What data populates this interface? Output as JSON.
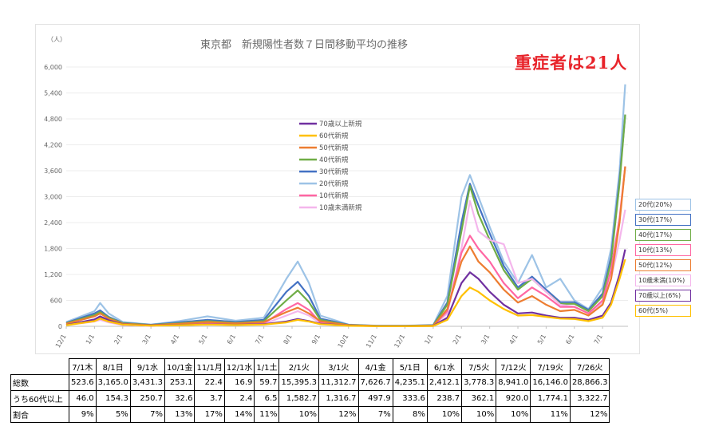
{
  "chart_data": {
    "type": "line",
    "title": "東京都　新規陽性者数７日間移動平均の推移",
    "y_unit_label": "（人）",
    "ylim": [
      0,
      6000
    ],
    "yticks": [
      "0",
      "600",
      "1,200",
      "1,800",
      "2,400",
      "3,000",
      "3,600",
      "4,200",
      "4,800",
      "5,400",
      "6,000"
    ],
    "x_range": [
      0,
      19.9
    ],
    "x_ticks": [
      "12/1",
      "1/1",
      "2/1",
      "3/1",
      "4/1",
      "5/1",
      "6/1",
      "7/1",
      "8/1",
      "9/1",
      "10/1",
      "11/1",
      "12/1",
      "1/1",
      "2/1",
      "3/1",
      "4/1",
      "5/1",
      "6/1",
      "7/1"
    ],
    "legend_placement": "center-left",
    "series": [
      {
        "name": "70歳以上新規",
        "color": "#7030a0",
        "values": [
          [
            0,
            30
          ],
          [
            1,
            160
          ],
          [
            1.2,
            230
          ],
          [
            1.5,
            140
          ],
          [
            2,
            45
          ],
          [
            3,
            18
          ],
          [
            4,
            30
          ],
          [
            5,
            45
          ],
          [
            6,
            35
          ],
          [
            7,
            50
          ],
          [
            7.8,
            110
          ],
          [
            8.2,
            170
          ],
          [
            8.6,
            120
          ],
          [
            9,
            60
          ],
          [
            10,
            15
          ],
          [
            11,
            5
          ],
          [
            12,
            5
          ],
          [
            13,
            10
          ],
          [
            13.5,
            200
          ],
          [
            14,
            1000
          ],
          [
            14.3,
            1250
          ],
          [
            14.6,
            1100
          ],
          [
            15,
            800
          ],
          [
            15.5,
            500
          ],
          [
            16,
            300
          ],
          [
            16.5,
            320
          ],
          [
            17,
            250
          ],
          [
            17.5,
            200
          ],
          [
            18,
            200
          ],
          [
            18.5,
            150
          ],
          [
            19,
            250
          ],
          [
            19.3,
            550
          ],
          [
            19.6,
            1200
          ],
          [
            19.8,
            1780
          ]
        ]
      },
      {
        "name": "60代新規",
        "color": "#ffc000",
        "values": [
          [
            0,
            25
          ],
          [
            1,
            120
          ],
          [
            1.2,
            180
          ],
          [
            1.5,
            110
          ],
          [
            2,
            40
          ],
          [
            3,
            15
          ],
          [
            4,
            25
          ],
          [
            5,
            40
          ],
          [
            6,
            30
          ],
          [
            7,
            40
          ],
          [
            7.8,
            90
          ],
          [
            8.2,
            150
          ],
          [
            8.6,
            110
          ],
          [
            9,
            50
          ],
          [
            10,
            12
          ],
          [
            11,
            4
          ],
          [
            12,
            4
          ],
          [
            13,
            8
          ],
          [
            13.5,
            150
          ],
          [
            14,
            700
          ],
          [
            14.3,
            900
          ],
          [
            14.6,
            800
          ],
          [
            15,
            600
          ],
          [
            15.5,
            400
          ],
          [
            16,
            250
          ],
          [
            16.5,
            260
          ],
          [
            17,
            220
          ],
          [
            17.5,
            180
          ],
          [
            18,
            170
          ],
          [
            18.5,
            120
          ],
          [
            19,
            200
          ],
          [
            19.3,
            500
          ],
          [
            19.6,
            1100
          ],
          [
            19.8,
            1550
          ]
        ]
      },
      {
        "name": "50代新規",
        "color": "#ed7d31",
        "values": [
          [
            0,
            60
          ],
          [
            1,
            230
          ],
          [
            1.2,
            300
          ],
          [
            1.5,
            180
          ],
          [
            2,
            60
          ],
          [
            3,
            25
          ],
          [
            4,
            60
          ],
          [
            5,
            100
          ],
          [
            6,
            70
          ],
          [
            7,
            100
          ],
          [
            7.8,
            330
          ],
          [
            8.2,
            430
          ],
          [
            8.6,
            300
          ],
          [
            9,
            120
          ],
          [
            10,
            25
          ],
          [
            11,
            8
          ],
          [
            12,
            8
          ],
          [
            13,
            15
          ],
          [
            13.5,
            400
          ],
          [
            14,
            1500
          ],
          [
            14.3,
            1850
          ],
          [
            14.6,
            1500
          ],
          [
            15,
            1250
          ],
          [
            15.5,
            850
          ],
          [
            16,
            550
          ],
          [
            16.5,
            700
          ],
          [
            17,
            500
          ],
          [
            17.5,
            350
          ],
          [
            18,
            380
          ],
          [
            18.5,
            250
          ],
          [
            19,
            500
          ],
          [
            19.3,
            1100
          ],
          [
            19.6,
            2400
          ],
          [
            19.8,
            3700
          ]
        ]
      },
      {
        "name": "40代新規",
        "color": "#70ad47",
        "values": [
          [
            0,
            70
          ],
          [
            1,
            260
          ],
          [
            1.2,
            330
          ],
          [
            1.5,
            200
          ],
          [
            2,
            70
          ],
          [
            3,
            30
          ],
          [
            4,
            70
          ],
          [
            5,
            120
          ],
          [
            6,
            80
          ],
          [
            7,
            120
          ],
          [
            7.8,
            600
          ],
          [
            8.2,
            830
          ],
          [
            8.6,
            560
          ],
          [
            9,
            150
          ],
          [
            10,
            30
          ],
          [
            11,
            10
          ],
          [
            12,
            10
          ],
          [
            13,
            20
          ],
          [
            13.5,
            500
          ],
          [
            14,
            2200
          ],
          [
            14.3,
            3250
          ],
          [
            14.6,
            2600
          ],
          [
            15,
            2000
          ],
          [
            15.5,
            1300
          ],
          [
            16,
            850
          ],
          [
            16.5,
            1100
          ],
          [
            17,
            800
          ],
          [
            17.5,
            520
          ],
          [
            18,
            520
          ],
          [
            18.5,
            350
          ],
          [
            19,
            700
          ],
          [
            19.3,
            1500
          ],
          [
            19.6,
            3300
          ],
          [
            19.8,
            4900
          ]
        ]
      },
      {
        "name": "30代新規",
        "color": "#4472c4",
        "values": [
          [
            0,
            80
          ],
          [
            1,
            300
          ],
          [
            1.2,
            370
          ],
          [
            1.5,
            220
          ],
          [
            2,
            80
          ],
          [
            3,
            35
          ],
          [
            4,
            90
          ],
          [
            5,
            150
          ],
          [
            6,
            100
          ],
          [
            7,
            150
          ],
          [
            7.8,
            800
          ],
          [
            8.2,
            1030
          ],
          [
            8.6,
            700
          ],
          [
            9,
            180
          ],
          [
            10,
            35
          ],
          [
            11,
            12
          ],
          [
            12,
            12
          ],
          [
            13,
            25
          ],
          [
            13.5,
            550
          ],
          [
            14,
            2400
          ],
          [
            14.3,
            3300
          ],
          [
            14.6,
            2800
          ],
          [
            15,
            2150
          ],
          [
            15.5,
            1400
          ],
          [
            16,
            900
          ],
          [
            16.5,
            1150
          ],
          [
            17,
            850
          ],
          [
            17.5,
            560
          ],
          [
            18,
            560
          ],
          [
            18.5,
            380
          ],
          [
            19,
            760
          ],
          [
            19.3,
            1600
          ],
          [
            19.6,
            3400
          ],
          [
            19.8,
            4900
          ]
        ]
      },
      {
        "name": "20代新規",
        "color": "#9dc3e6",
        "values": [
          [
            0,
            100
          ],
          [
            1,
            350
          ],
          [
            1.2,
            540
          ],
          [
            1.5,
            300
          ],
          [
            2,
            100
          ],
          [
            3,
            40
          ],
          [
            4,
            120
          ],
          [
            5,
            230
          ],
          [
            6,
            130
          ],
          [
            7,
            200
          ],
          [
            7.8,
            1100
          ],
          [
            8.2,
            1500
          ],
          [
            8.6,
            1000
          ],
          [
            9,
            250
          ],
          [
            10,
            40
          ],
          [
            11,
            15
          ],
          [
            12,
            15
          ],
          [
            13,
            30
          ],
          [
            13.5,
            700
          ],
          [
            14,
            3000
          ],
          [
            14.3,
            3500
          ],
          [
            14.6,
            3000
          ],
          [
            15,
            2300
          ],
          [
            15.5,
            1500
          ],
          [
            16,
            1000
          ],
          [
            16.5,
            1650
          ],
          [
            17,
            900
          ],
          [
            17.5,
            1100
          ],
          [
            18,
            600
          ],
          [
            18.5,
            400
          ],
          [
            19,
            900
          ],
          [
            19.3,
            1800
          ],
          [
            19.6,
            3600
          ],
          [
            19.8,
            5600
          ]
        ]
      },
      {
        "name": "10代新規",
        "color": "#ff66a3",
        "values": [
          [
            0,
            40
          ],
          [
            1,
            150
          ],
          [
            1.2,
            200
          ],
          [
            1.5,
            120
          ],
          [
            2,
            40
          ],
          [
            3,
            15
          ],
          [
            4,
            40
          ],
          [
            5,
            70
          ],
          [
            6,
            50
          ],
          [
            7,
            70
          ],
          [
            7.8,
            400
          ],
          [
            8.2,
            540
          ],
          [
            8.6,
            380
          ],
          [
            9,
            90
          ],
          [
            10,
            20
          ],
          [
            11,
            6
          ],
          [
            12,
            6
          ],
          [
            13,
            12
          ],
          [
            13.5,
            350
          ],
          [
            14,
            1700
          ],
          [
            14.3,
            2100
          ],
          [
            14.6,
            1800
          ],
          [
            15,
            1500
          ],
          [
            15.5,
            1000
          ],
          [
            16,
            650
          ],
          [
            16.5,
            900
          ],
          [
            17,
            700
          ],
          [
            17.5,
            450
          ],
          [
            18,
            450
          ],
          [
            18.5,
            300
          ],
          [
            19,
            600
          ],
          [
            19.3,
            1300
          ],
          [
            19.6,
            2500
          ],
          [
            19.8,
            3700
          ]
        ]
      },
      {
        "name": "10歳未満新規",
        "color": "#f4b6ec",
        "values": [
          [
            0,
            30
          ],
          [
            1,
            110
          ],
          [
            1.2,
            150
          ],
          [
            1.5,
            90
          ],
          [
            2,
            30
          ],
          [
            3,
            12
          ],
          [
            4,
            30
          ],
          [
            5,
            55
          ],
          [
            6,
            40
          ],
          [
            7,
            55
          ],
          [
            7.8,
            250
          ],
          [
            8.2,
            350
          ],
          [
            8.6,
            250
          ],
          [
            9,
            70
          ],
          [
            10,
            15
          ],
          [
            11,
            5
          ],
          [
            12,
            5
          ],
          [
            13,
            10
          ],
          [
            13.5,
            300
          ],
          [
            14,
            1800
          ],
          [
            14.3,
            2900
          ],
          [
            14.6,
            2200
          ],
          [
            15,
            2000
          ],
          [
            15.5,
            1900
          ],
          [
            16,
            1000
          ],
          [
            16.5,
            1100
          ],
          [
            17,
            800
          ],
          [
            17.5,
            500
          ],
          [
            18,
            450
          ],
          [
            18.5,
            300
          ],
          [
            19,
            550
          ],
          [
            19.3,
            1100
          ],
          [
            19.6,
            2000
          ],
          [
            19.8,
            2700
          ]
        ]
      }
    ]
  },
  "annotation": "重症者は21人",
  "age_share_boxes": [
    {
      "label": "20代(20%)",
      "color": "#9dc3e6"
    },
    {
      "label": "30代(17%)",
      "color": "#4472c4"
    },
    {
      "label": "40代(17%)",
      "color": "#70ad47"
    },
    {
      "label": "10代(13%)",
      "color": "#ff66a3"
    },
    {
      "label": "50代(12%)",
      "color": "#ed7d31"
    },
    {
      "label": "10歳未満(10%)",
      "color": "#f4b6ec"
    },
    {
      "label": "70歳以上(6%)",
      "color": "#7030a0"
    },
    {
      "label": "60代(5%)",
      "color": "#ffc000"
    }
  ],
  "table": {
    "headers": [
      "7/1木",
      "8/1日",
      "9/1水",
      "10/1金",
      "11/1月",
      "12/1水",
      "1/1土",
      "2/1火",
      "3/1火",
      "4/1金",
      "5/1日",
      "6/1水",
      "7/5火",
      "7/12火",
      "7/19火",
      "7/26火"
    ],
    "rows": [
      {
        "label": "総数",
        "cells": [
          "523.6",
          "3,165.0",
          "3,431.3",
          "253.1",
          "22.4",
          "16.9",
          "59.7",
          "15,395.3",
          "11,312.7",
          "7,626.7",
          "4,235.1",
          "2,412.1",
          "3,778.3",
          "8,941.0",
          "16,146.0",
          "28,866.3"
        ]
      },
      {
        "label": "うち60代以上",
        "cells": [
          "46.0",
          "154.3",
          "250.7",
          "32.6",
          "3.7",
          "2.4",
          "6.5",
          "1,582.7",
          "1,316.7",
          "497.9",
          "333.6",
          "238.7",
          "362.1",
          "920.0",
          "1,774.1",
          "3,322.7"
        ]
      },
      {
        "label": "割合",
        "cells": [
          "9%",
          "5%",
          "7%",
          "13%",
          "17%",
          "14%",
          "11%",
          "10%",
          "12%",
          "7%",
          "8%",
          "10%",
          "10%",
          "10%",
          "11%",
          "12%"
        ]
      }
    ]
  }
}
